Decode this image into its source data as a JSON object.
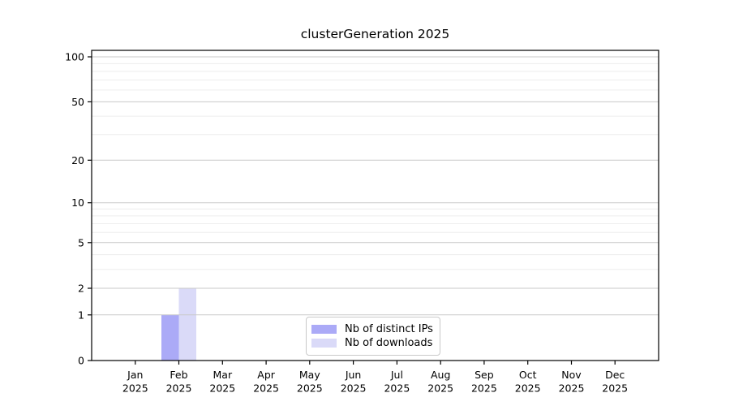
{
  "figure": {
    "background": "#ffffff",
    "axis_color": "#000000",
    "text_color": "#000000"
  },
  "chart_data": {
    "type": "bar",
    "title": "clusterGeneration 2025",
    "x_labels": [
      {
        "month": "Jan",
        "year": "2025"
      },
      {
        "month": "Feb",
        "year": "2025"
      },
      {
        "month": "Mar",
        "year": "2025"
      },
      {
        "month": "Apr",
        "year": "2025"
      },
      {
        "month": "May",
        "year": "2025"
      },
      {
        "month": "Jun",
        "year": "2025"
      },
      {
        "month": "Jul",
        "year": "2025"
      },
      {
        "month": "Aug",
        "year": "2025"
      },
      {
        "month": "Sep",
        "year": "2025"
      },
      {
        "month": "Oct",
        "year": "2025"
      },
      {
        "month": "Nov",
        "year": "2025"
      },
      {
        "month": "Dec",
        "year": "2025"
      }
    ],
    "series": [
      {
        "name": "Nb of distinct IPs",
        "color": "#abaaf7",
        "values": [
          0,
          1,
          0,
          0,
          0,
          0,
          0,
          0,
          0,
          0,
          0,
          0
        ]
      },
      {
        "name": "Nb of downloads",
        "color": "#dadaf8",
        "values": [
          0,
          2,
          0,
          0,
          0,
          0,
          0,
          0,
          0,
          0,
          0,
          0
        ]
      }
    ],
    "y_axis": {
      "scale": "log10(1+y)",
      "major_ticks": [
        0,
        1,
        2,
        5,
        10,
        20,
        50,
        100
      ],
      "minor_ticks": [
        3,
        4,
        6,
        7,
        8,
        9,
        30,
        40,
        60,
        70,
        80,
        90
      ],
      "ylim": [
        0,
        110
      ]
    },
    "grid": {
      "major_color": "#c9c9c9",
      "minor_color": "#ededed",
      "grid_on": true
    },
    "legend": {
      "position": "lower-center-inside",
      "border_color": "#c9c9c9",
      "background": "#ffffff"
    }
  }
}
